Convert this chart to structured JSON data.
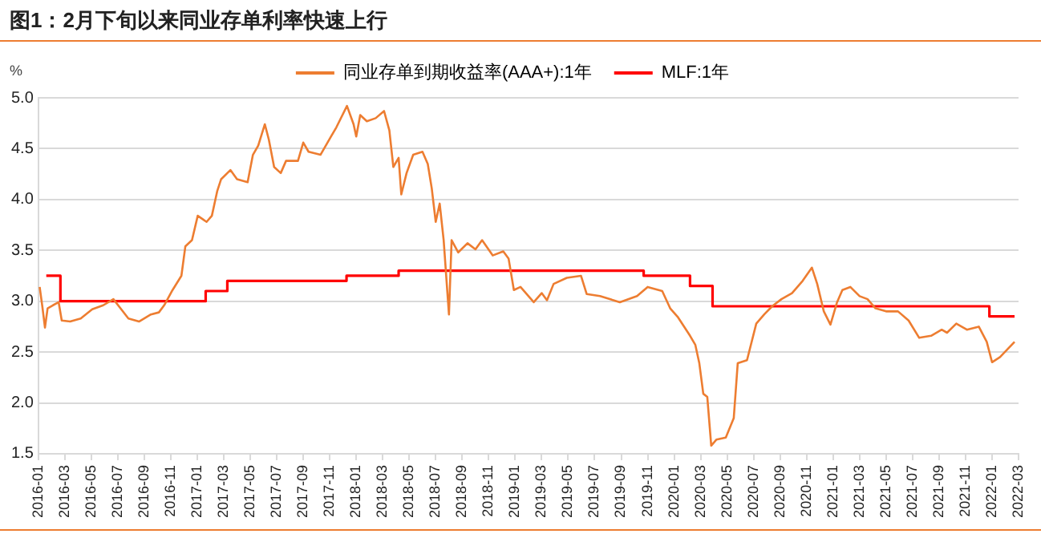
{
  "chart_data": {
    "type": "line",
    "title": "图1：2月下旬以来同业存单利率快速上行",
    "ylabel": "%",
    "xlim": [
      "2016-01",
      "2022-03"
    ],
    "xticks": [
      "2016-01",
      "2016-03",
      "2016-05",
      "2016-07",
      "2016-09",
      "2016-11",
      "2017-01",
      "2017-03",
      "2017-05",
      "2017-07",
      "2017-09",
      "2017-11",
      "2018-01",
      "2018-03",
      "2018-05",
      "2018-07",
      "2018-09",
      "2018-11",
      "2019-01",
      "2019-03",
      "2019-05",
      "2019-07",
      "2019-09",
      "2019-11",
      "2020-01",
      "2020-03",
      "2020-05",
      "2020-07",
      "2020-09",
      "2020-11",
      "2021-01",
      "2021-03",
      "2021-05",
      "2021-07",
      "2021-09",
      "2021-11",
      "2022-01",
      "2022-03"
    ],
    "ylim": [
      1.5,
      5.0
    ],
    "yticks": [
      {
        "value": 1.5,
        "label": "1.5"
      },
      {
        "value": 2,
        "label": "2.0"
      },
      {
        "value": 2.5,
        "label": "2.5"
      },
      {
        "value": 3,
        "label": "3.0"
      },
      {
        "value": 3.5,
        "label": "3.5"
      },
      {
        "value": 4,
        "label": "4.0"
      },
      {
        "value": 4.5,
        "label": "4.5"
      },
      {
        "value": 5,
        "label": "5.0"
      }
    ],
    "grid": "y",
    "legend": "top",
    "marker": "none",
    "line_style": "solid",
    "series": [
      {
        "name": "同业存单到期收益率(AAA+):1年",
        "color": "#ed7d31",
        "x": [
          "2016-01-04",
          "2016-01-10",
          "2016-01-16",
          "2016-01-22",
          "2016-02-04",
          "2016-02-17",
          "2016-02-24",
          "2016-03-13",
          "2016-04-07",
          "2016-05-03",
          "2016-05-28",
          "2016-06-21",
          "2016-07-07",
          "2016-07-25",
          "2016-08-19",
          "2016-09-16",
          "2016-10-04",
          "2016-10-16",
          "2016-11-05",
          "2016-11-25",
          "2016-12-04",
          "2016-12-19",
          "2017-01-02",
          "2017-01-22",
          "2017-02-04",
          "2017-02-16",
          "2017-02-25",
          "2017-03-16",
          "2017-04-01",
          "2017-04-25",
          "2017-05-07",
          "2017-05-19",
          "2017-06-04",
          "2017-06-13",
          "2017-06-25",
          "2017-07-10",
          "2017-07-22",
          "2017-08-19",
          "2017-09-01",
          "2017-09-13",
          "2017-10-10",
          "2017-11-04",
          "2017-11-16",
          "2017-12-10",
          "2017-12-25",
          "2018-01-01",
          "2018-01-10",
          "2018-01-25",
          "2018-02-15",
          "2018-03-04",
          "2018-03-16",
          "2018-03-25",
          "2018-04-07",
          "2018-04-13",
          "2018-04-25",
          "2018-05-10",
          "2018-06-01",
          "2018-06-13",
          "2018-06-22",
          "2018-07-01",
          "2018-07-10",
          "2018-07-19",
          "2018-07-28",
          "2018-08-01",
          "2018-08-07",
          "2018-08-22",
          "2018-09-13",
          "2018-10-01",
          "2018-10-16",
          "2018-11-10",
          "2018-12-04",
          "2018-12-16",
          "2018-12-28",
          "2019-01-13",
          "2019-02-13",
          "2019-03-01",
          "2019-03-13",
          "2019-03-28",
          "2019-04-28",
          "2019-05-30",
          "2019-06-13",
          "2019-07-13",
          "2019-08-28",
          "2019-10-07",
          "2019-11-01",
          "2019-12-04",
          "2019-12-22",
          "2020-01-10",
          "2020-02-07",
          "2020-02-19",
          "2020-02-28",
          "2020-03-07",
          "2020-03-16",
          "2020-03-25",
          "2020-04-07",
          "2020-04-28",
          "2020-05-16",
          "2020-05-25",
          "2020-06-16",
          "2020-07-07",
          "2020-07-25",
          "2020-08-13",
          "2020-09-04",
          "2020-09-28",
          "2020-10-22",
          "2020-11-13",
          "2020-11-25",
          "2020-12-10",
          "2020-12-25",
          "2021-01-10",
          "2021-01-22",
          "2021-02-10",
          "2021-03-01",
          "2021-03-19",
          "2021-04-07",
          "2021-05-01",
          "2021-05-28",
          "2021-06-22",
          "2021-07-16",
          "2021-08-13",
          "2021-09-07",
          "2021-09-19",
          "2021-10-10",
          "2021-11-04",
          "2021-12-01",
          "2021-12-19",
          "2022-01-01",
          "2022-01-19",
          "2022-02-22"
        ],
        "values": [
          3.14,
          2.95,
          2.74,
          2.93,
          2.96,
          2.99,
          2.81,
          2.8,
          2.83,
          2.92,
          2.96,
          3.02,
          2.93,
          2.83,
          2.8,
          2.87,
          2.89,
          2.96,
          3.11,
          3.25,
          3.54,
          3.6,
          3.84,
          3.78,
          3.84,
          4.08,
          4.2,
          4.29,
          4.2,
          4.17,
          4.44,
          4.53,
          4.74,
          4.59,
          4.32,
          4.26,
          4.38,
          4.38,
          4.56,
          4.47,
          4.44,
          4.62,
          4.71,
          4.92,
          4.74,
          4.62,
          4.83,
          4.77,
          4.8,
          4.87,
          4.68,
          4.32,
          4.41,
          4.05,
          4.26,
          4.44,
          4.47,
          4.35,
          4.11,
          3.78,
          3.96,
          3.6,
          3.05,
          2.87,
          3.6,
          3.48,
          3.57,
          3.51,
          3.6,
          3.45,
          3.49,
          3.42,
          3.11,
          3.14,
          2.99,
          3.08,
          3.01,
          3.17,
          3.23,
          3.25,
          3.07,
          3.05,
          2.99,
          3.05,
          3.14,
          3.1,
          2.93,
          2.84,
          2.66,
          2.57,
          2.39,
          2.09,
          2.06,
          1.58,
          1.64,
          1.66,
          1.85,
          2.39,
          2.42,
          2.78,
          2.87,
          2.95,
          3.02,
          3.08,
          3.2,
          3.33,
          3.17,
          2.9,
          2.77,
          2.99,
          3.11,
          3.14,
          3.05,
          3.02,
          2.93,
          2.9,
          2.9,
          2.81,
          2.64,
          2.66,
          2.72,
          2.69,
          2.78,
          2.72,
          2.75,
          2.6,
          2.4,
          2.45,
          2.6
        ]
      },
      {
        "name": "MLF:1年",
        "color": "#ff0000",
        "type": "step",
        "x": [
          "2016-01-19",
          "2016-02-21",
          "2017-01-20",
          "2017-03-09",
          "2017-12-09",
          "2018-04-07",
          "2019-10-22",
          "2020-02-07",
          "2020-03-28",
          "2021-12-25",
          "2022-02-22"
        ],
        "values": [
          3.25,
          3.0,
          3.1,
          3.2,
          3.25,
          3.3,
          3.25,
          3.15,
          2.95,
          2.85,
          2.85
        ]
      }
    ]
  }
}
